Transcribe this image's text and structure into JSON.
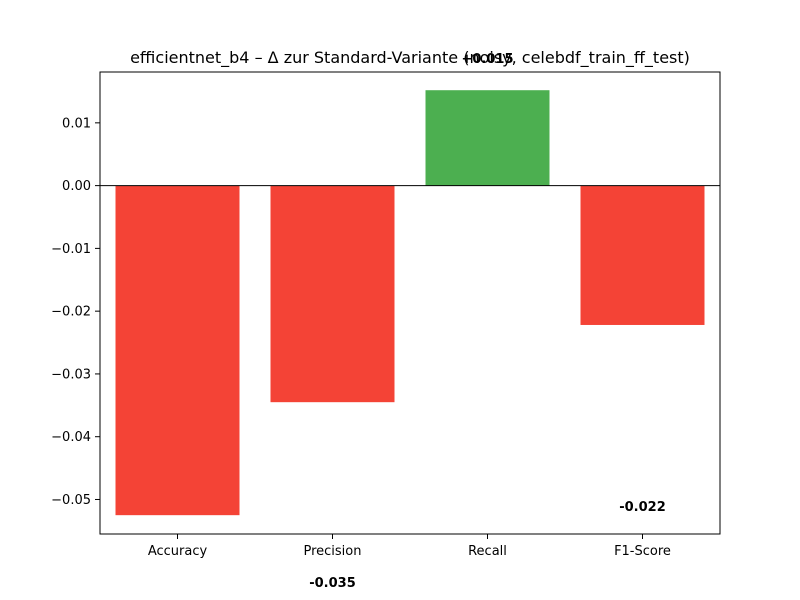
{
  "chart_data": {
    "type": "bar",
    "title": "efficientnet_b4 – Δ zur Standard-Variante (noisy, celebdf_train_ff_test)",
    "xlabel": "",
    "ylabel": "",
    "categories": [
      "Accuracy",
      "Precision",
      "Recall",
      "F1-Score"
    ],
    "values": [
      -0.0525,
      -0.0345,
      0.0152,
      -0.0222
    ],
    "data_labels": [
      "",
      "-0.035",
      "+0.015",
      "-0.022"
    ],
    "ylim": [
      -0.0555,
      0.0181
    ],
    "yticks": [
      0.01,
      0.0,
      -0.01,
      -0.02,
      -0.03,
      -0.04,
      -0.05
    ],
    "ytick_labels": [
      "0.01",
      "0.00",
      "−0.01",
      "−0.02",
      "−0.03",
      "−0.04",
      "−0.05"
    ],
    "grid": false,
    "colors": {
      "positive": "#4caf50",
      "negative": "#f44336",
      "zero_line": "#000000"
    }
  }
}
